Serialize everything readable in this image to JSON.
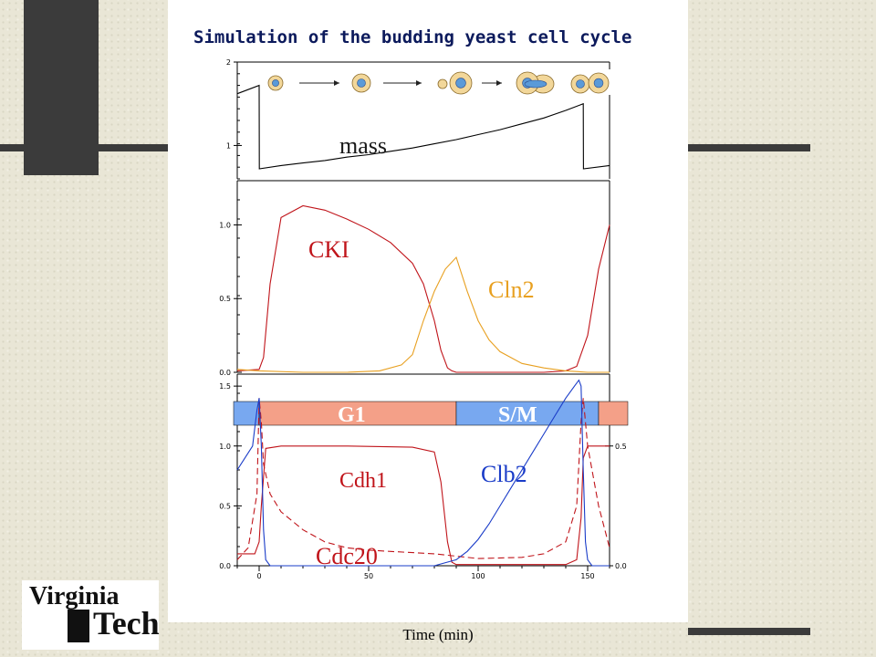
{
  "title": "Simulation of the budding yeast cell cycle",
  "xlabel": "Time (min)",
  "logo": {
    "line1": "Virginia",
    "line2": "Tech"
  },
  "colors": {
    "red": "#c0141a",
    "orange": "#e8a020",
    "blue": "#1a3cc8",
    "phase_salmon": "#f4a088",
    "phase_blue": "#78a8f0"
  },
  "icons": [
    "cell-icon",
    "arrow-icon"
  ],
  "chart_data": [
    {
      "type": "line",
      "panel": "top",
      "xlim": [
        -10,
        160
      ],
      "ylim": [
        0.6,
        2
      ],
      "yticks": [
        1,
        2
      ],
      "series": [
        {
          "name": "mass",
          "color": "#000000",
          "x": [
            -10,
            0,
            0.1,
            10,
            20,
            30,
            40,
            50,
            60,
            70,
            80,
            90,
            100,
            110,
            120,
            130,
            140,
            148,
            148.1,
            160
          ],
          "y": [
            1.62,
            1.72,
            0.72,
            0.76,
            0.79,
            0.82,
            0.86,
            0.89,
            0.93,
            0.97,
            1.02,
            1.07,
            1.13,
            1.19,
            1.26,
            1.33,
            1.42,
            1.5,
            0.72,
            0.76
          ]
        }
      ]
    },
    {
      "type": "line",
      "panel": "middle",
      "xlim": [
        -10,
        160
      ],
      "ylim": [
        0,
        1.3
      ],
      "yticks": [
        0.0,
        0.5,
        1.0
      ],
      "series": [
        {
          "name": "CKI",
          "color": "#c0141a",
          "x": [
            -10,
            0,
            2,
            5,
            10,
            20,
            30,
            40,
            50,
            60,
            70,
            75,
            80,
            83,
            86,
            88,
            90,
            100,
            130,
            140,
            145,
            150,
            155,
            160
          ],
          "y": [
            0.01,
            0.02,
            0.1,
            0.6,
            1.05,
            1.13,
            1.1,
            1.04,
            0.97,
            0.88,
            0.74,
            0.6,
            0.35,
            0.15,
            0.03,
            0.01,
            0.0,
            0.0,
            0.0,
            0.01,
            0.04,
            0.25,
            0.7,
            1.0
          ]
        },
        {
          "name": "Cln2",
          "color": "#e8a020",
          "x": [
            -10,
            0,
            20,
            40,
            55,
            65,
            70,
            75,
            80,
            85,
            90,
            95,
            100,
            105,
            110,
            120,
            130,
            140,
            150,
            160
          ],
          "y": [
            0.02,
            0.01,
            0.0,
            0.0,
            0.01,
            0.05,
            0.12,
            0.35,
            0.55,
            0.7,
            0.78,
            0.55,
            0.35,
            0.22,
            0.14,
            0.06,
            0.03,
            0.01,
            0.0,
            0.0
          ]
        }
      ]
    },
    {
      "type": "line",
      "panel": "bottom",
      "xlim": [
        -10,
        160
      ],
      "ylim": [
        0,
        1.6
      ],
      "yticks": [
        0.0,
        0.5,
        1.0,
        1.5
      ],
      "ylim_right": [
        0,
        0.8
      ],
      "yticks_right": [
        0.0,
        0.5
      ],
      "phases": [
        {
          "name": "G1",
          "x": [
            0,
            90
          ],
          "color": "#f4a088"
        },
        {
          "name": "S/M",
          "x": [
            90,
            155
          ],
          "color": "#78a8f0"
        }
      ],
      "series": [
        {
          "name": "Cdh1",
          "color": "#c0141a",
          "style": "solid",
          "x": [
            -10,
            -2,
            0,
            1,
            3,
            10,
            40,
            70,
            80,
            83,
            86,
            88,
            90,
            140,
            145,
            147,
            148,
            150,
            153,
            160
          ],
          "y": [
            0.1,
            0.1,
            0.2,
            0.5,
            0.98,
            1.0,
            1.0,
            0.99,
            0.95,
            0.7,
            0.2,
            0.03,
            0.01,
            0.01,
            0.05,
            0.4,
            0.9,
            1.0,
            1.0,
            1.0
          ]
        },
        {
          "name": "Cdc20",
          "color": "#c0141a",
          "style": "dashed",
          "x": [
            -10,
            -5,
            -1,
            0,
            1,
            2,
            5,
            10,
            20,
            30,
            40,
            50,
            60,
            70,
            80,
            90,
            100,
            120,
            130,
            140,
            145,
            147,
            148,
            150,
            155,
            160
          ],
          "y": [
            0.05,
            0.15,
            0.6,
            1.4,
            1.2,
            0.85,
            0.6,
            0.45,
            0.3,
            0.2,
            0.15,
            0.13,
            0.12,
            0.11,
            0.1,
            0.08,
            0.06,
            0.07,
            0.1,
            0.2,
            0.5,
            1.2,
            1.4,
            1.0,
            0.5,
            0.15
          ]
        },
        {
          "name": "Clb2",
          "color": "#1a3cc8",
          "style": "solid",
          "x": [
            -10,
            -3,
            -1,
            0,
            1,
            2,
            3,
            5,
            20,
            50,
            80,
            90,
            95,
            100,
            105,
            110,
            115,
            120,
            125,
            130,
            135,
            140,
            144,
            146,
            147,
            148,
            149,
            150,
            152,
            160
          ],
          "y": [
            0.8,
            1.0,
            1.3,
            1.4,
            1.0,
            0.3,
            0.05,
            0.0,
            0.0,
            0.0,
            0.0,
            0.05,
            0.12,
            0.22,
            0.35,
            0.5,
            0.65,
            0.8,
            0.95,
            1.1,
            1.25,
            1.4,
            1.5,
            1.55,
            1.5,
            0.8,
            0.2,
            0.05,
            0.0,
            0.0
          ]
        }
      ]
    }
  ],
  "xticks": [
    0,
    50,
    100,
    150
  ],
  "labels": {
    "mass": "mass",
    "cki": "CKI",
    "cln2": "Cln2",
    "cdh1": "Cdh1",
    "clb2": "Clb2",
    "cdc20": "Cdc20",
    "g1": "G1",
    "sm": "S/M"
  }
}
